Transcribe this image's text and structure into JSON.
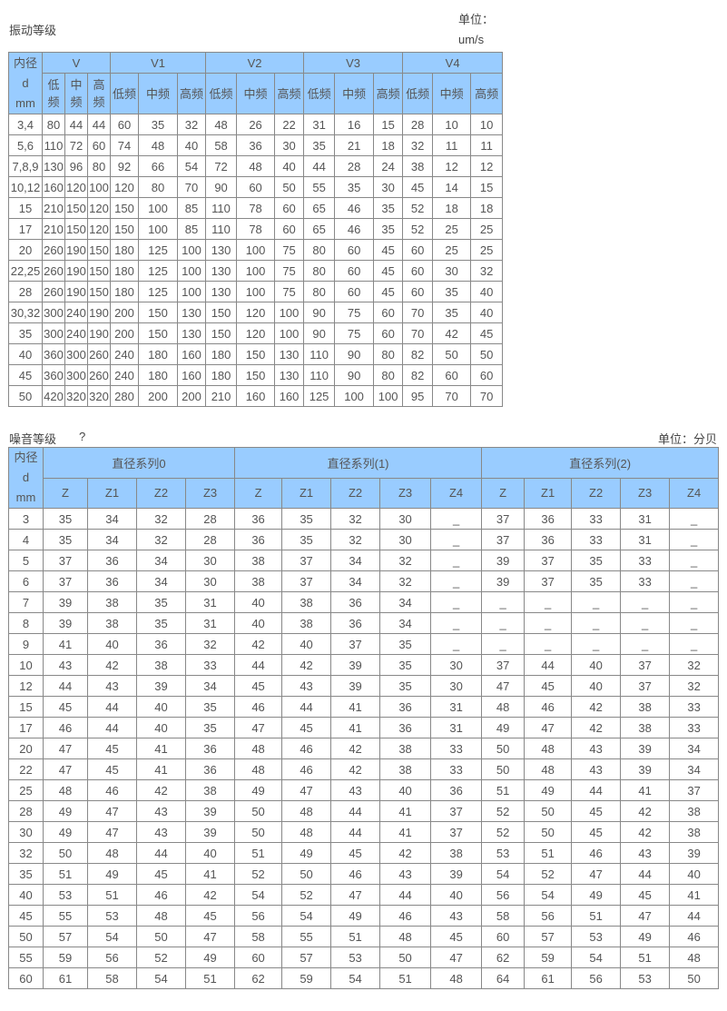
{
  "vibration": {
    "title": "振动等级",
    "unit_label": "单位：",
    "unit_value": "um/s",
    "header_d": [
      "内径",
      "d",
      "mm"
    ],
    "groups": [
      "V",
      "V1",
      "V2",
      "V3",
      "V4"
    ],
    "sub_narrow": [
      "低\n频",
      "中\n频",
      "高\n频"
    ],
    "sub": [
      "低频",
      "中频",
      "高频"
    ],
    "rows": [
      [
        "3,4",
        "80",
        "44",
        "44",
        "60",
        "35",
        "32",
        "48",
        "26",
        "22",
        "31",
        "16",
        "15",
        "28",
        "10",
        "10"
      ],
      [
        "5,6",
        "110",
        "72",
        "60",
        "74",
        "48",
        "40",
        "58",
        "36",
        "30",
        "35",
        "21",
        "18",
        "32",
        "11",
        "11"
      ],
      [
        "7,8,9",
        "130",
        "96",
        "80",
        "92",
        "66",
        "54",
        "72",
        "48",
        "40",
        "44",
        "28",
        "24",
        "38",
        "12",
        "12"
      ],
      [
        "10,12",
        "160",
        "120",
        "100",
        "120",
        "80",
        "70",
        "90",
        "60",
        "50",
        "55",
        "35",
        "30",
        "45",
        "14",
        "15"
      ],
      [
        "15",
        "210",
        "150",
        "120",
        "150",
        "100",
        "85",
        "110",
        "78",
        "60",
        "65",
        "46",
        "35",
        "52",
        "18",
        "18"
      ],
      [
        "17",
        "210",
        "150",
        "120",
        "150",
        "100",
        "85",
        "110",
        "78",
        "60",
        "65",
        "46",
        "35",
        "52",
        "25",
        "25"
      ],
      [
        "20",
        "260",
        "190",
        "150",
        "180",
        "125",
        "100",
        "130",
        "100",
        "75",
        "80",
        "60",
        "45",
        "60",
        "25",
        "25"
      ],
      [
        "22,25",
        "260",
        "190",
        "150",
        "180",
        "125",
        "100",
        "130",
        "100",
        "75",
        "80",
        "60",
        "45",
        "60",
        "30",
        "32"
      ],
      [
        "28",
        "260",
        "190",
        "150",
        "180",
        "125",
        "100",
        "130",
        "100",
        "75",
        "80",
        "60",
        "45",
        "60",
        "35",
        "40"
      ],
      [
        "30,32",
        "300",
        "240",
        "190",
        "200",
        "150",
        "130",
        "150",
        "120",
        "100",
        "90",
        "75",
        "60",
        "70",
        "35",
        "40"
      ],
      [
        "35",
        "300",
        "240",
        "190",
        "200",
        "150",
        "130",
        "150",
        "120",
        "100",
        "90",
        "75",
        "60",
        "70",
        "42",
        "45"
      ],
      [
        "40",
        "360",
        "300",
        "260",
        "240",
        "180",
        "160",
        "180",
        "150",
        "130",
        "110",
        "90",
        "80",
        "82",
        "50",
        "50"
      ],
      [
        "45",
        "360",
        "300",
        "260",
        "240",
        "180",
        "160",
        "180",
        "150",
        "130",
        "110",
        "90",
        "80",
        "82",
        "60",
        "60"
      ],
      [
        "50",
        "420",
        "320",
        "320",
        "280",
        "200",
        "200",
        "210",
        "160",
        "160",
        "125",
        "100",
        "100",
        "95",
        "70",
        "70"
      ]
    ]
  },
  "noise": {
    "title": "噪音等级",
    "title_mark": "?",
    "unit_label": "单位：分贝",
    "header_d": [
      "内径",
      "d",
      "mm"
    ],
    "groups": [
      "直径系列0",
      "直径系列(1)",
      "直径系列(2)"
    ],
    "sub": [
      "Z",
      "Z1",
      "Z2",
      "Z3",
      "Z",
      "Z1",
      "Z2",
      "Z3",
      "Z4",
      "Z",
      "Z1",
      "Z2",
      "Z3",
      "Z4"
    ],
    "rows": [
      [
        "3",
        "35",
        "34",
        "32",
        "28",
        "36",
        "35",
        "32",
        "30",
        "_",
        "37",
        "36",
        "33",
        "31",
        "_"
      ],
      [
        "4",
        "35",
        "34",
        "32",
        "28",
        "36",
        "35",
        "32",
        "30",
        "_",
        "37",
        "36",
        "33",
        "31",
        "_"
      ],
      [
        "5",
        "37",
        "36",
        "34",
        "30",
        "38",
        "37",
        "34",
        "32",
        "_",
        "39",
        "37",
        "35",
        "33",
        "_"
      ],
      [
        "6",
        "37",
        "36",
        "34",
        "30",
        "38",
        "37",
        "34",
        "32",
        "_",
        "39",
        "37",
        "35",
        "33",
        "_"
      ],
      [
        "7",
        "39",
        "38",
        "35",
        "31",
        "40",
        "38",
        "36",
        "34",
        "_",
        "_",
        "_",
        "_",
        "_",
        "_"
      ],
      [
        "8",
        "39",
        "38",
        "35",
        "31",
        "40",
        "38",
        "36",
        "34",
        "_",
        "_",
        "_",
        "_",
        "_",
        "_"
      ],
      [
        "9",
        "41",
        "40",
        "36",
        "32",
        "42",
        "40",
        "37",
        "35",
        "_",
        "_",
        "_",
        "_",
        "_",
        "_"
      ],
      [
        "10",
        "43",
        "42",
        "38",
        "33",
        "44",
        "42",
        "39",
        "35",
        "30",
        "37",
        "44",
        "40",
        "37",
        "32"
      ],
      [
        "12",
        "44",
        "43",
        "39",
        "34",
        "45",
        "43",
        "39",
        "35",
        "30",
        "47",
        "45",
        "40",
        "37",
        "32"
      ],
      [
        "15",
        "45",
        "44",
        "40",
        "35",
        "46",
        "44",
        "41",
        "36",
        "31",
        "48",
        "46",
        "42",
        "38",
        "33"
      ],
      [
        "17",
        "46",
        "44",
        "40",
        "35",
        "47",
        "45",
        "41",
        "36",
        "31",
        "49",
        "47",
        "42",
        "38",
        "33"
      ],
      [
        "20",
        "47",
        "45",
        "41",
        "36",
        "48",
        "46",
        "42",
        "38",
        "33",
        "50",
        "48",
        "43",
        "39",
        "34"
      ],
      [
        "22",
        "47",
        "45",
        "41",
        "36",
        "48",
        "46",
        "42",
        "38",
        "33",
        "50",
        "48",
        "43",
        "39",
        "34"
      ],
      [
        "25",
        "48",
        "46",
        "42",
        "38",
        "49",
        "47",
        "43",
        "40",
        "36",
        "51",
        "49",
        "44",
        "41",
        "37"
      ],
      [
        "28",
        "49",
        "47",
        "43",
        "39",
        "50",
        "48",
        "44",
        "41",
        "37",
        "52",
        "50",
        "45",
        "42",
        "38"
      ],
      [
        "30",
        "49",
        "47",
        "43",
        "39",
        "50",
        "48",
        "44",
        "41",
        "37",
        "52",
        "50",
        "45",
        "42",
        "38"
      ],
      [
        "32",
        "50",
        "48",
        "44",
        "40",
        "51",
        "49",
        "45",
        "42",
        "38",
        "53",
        "51",
        "46",
        "43",
        "39"
      ],
      [
        "35",
        "51",
        "49",
        "45",
        "41",
        "52",
        "50",
        "46",
        "43",
        "39",
        "54",
        "52",
        "47",
        "44",
        "40"
      ],
      [
        "40",
        "53",
        "51",
        "46",
        "42",
        "54",
        "52",
        "47",
        "44",
        "40",
        "56",
        "54",
        "49",
        "45",
        "41"
      ],
      [
        "45",
        "55",
        "53",
        "48",
        "45",
        "56",
        "54",
        "49",
        "46",
        "43",
        "58",
        "56",
        "51",
        "47",
        "44"
      ],
      [
        "50",
        "57",
        "54",
        "50",
        "47",
        "58",
        "55",
        "51",
        "48",
        "45",
        "60",
        "57",
        "53",
        "49",
        "46"
      ],
      [
        "55",
        "59",
        "56",
        "52",
        "49",
        "60",
        "57",
        "53",
        "50",
        "47",
        "62",
        "59",
        "54",
        "51",
        "48"
      ],
      [
        "60",
        "61",
        "58",
        "54",
        "51",
        "62",
        "59",
        "54",
        "51",
        "48",
        "64",
        "61",
        "56",
        "53",
        "50"
      ]
    ]
  }
}
